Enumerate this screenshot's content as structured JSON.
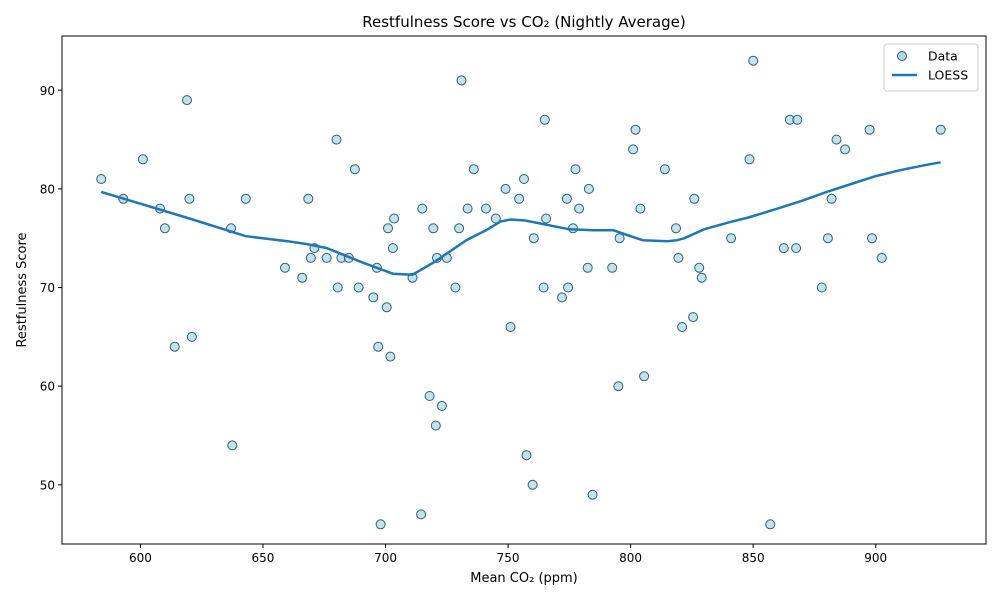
{
  "chart_data": {
    "type": "scatter",
    "title": "Restfulness Score vs CO₂ (Nightly Average)",
    "xlabel": "Mean CO₂ (ppm)",
    "ylabel": "Restfulness Score",
    "xlim": [
      568,
      945
    ],
    "ylim": [
      44,
      95.5
    ],
    "xticks": [
      600,
      650,
      700,
      750,
      800,
      850,
      900
    ],
    "yticks": [
      50,
      60,
      70,
      80,
      90
    ],
    "grid": false,
    "legend_position": "top-right",
    "legend": [
      "Data",
      "LOESS"
    ],
    "colors": {
      "point_fill": "#add8e6",
      "point_edge": "#2f5f74",
      "loess_line": "#1f77b4"
    },
    "series": [
      {
        "name": "Data",
        "kind": "scatter",
        "points": [
          [
            584,
            81
          ],
          [
            593,
            79
          ],
          [
            601,
            83
          ],
          [
            608,
            78
          ],
          [
            610,
            76
          ],
          [
            614,
            64
          ],
          [
            619,
            89
          ],
          [
            620,
            79
          ],
          [
            621,
            65
          ],
          [
            637,
            76
          ],
          [
            637.5,
            54
          ],
          [
            643,
            79
          ],
          [
            659,
            72
          ],
          [
            666,
            71
          ],
          [
            668.5,
            79
          ],
          [
            669.5,
            73
          ],
          [
            671,
            74
          ],
          [
            676,
            73
          ],
          [
            680,
            85
          ],
          [
            680.5,
            70
          ],
          [
            682,
            73
          ],
          [
            685,
            73
          ],
          [
            687.5,
            82
          ],
          [
            689,
            70
          ],
          [
            695,
            69
          ],
          [
            696.5,
            72
          ],
          [
            697,
            64
          ],
          [
            698,
            46
          ],
          [
            700.5,
            68
          ],
          [
            701,
            76
          ],
          [
            702,
            63
          ],
          [
            703,
            74
          ],
          [
            703.5,
            77
          ],
          [
            711,
            71
          ],
          [
            714.5,
            47
          ],
          [
            715,
            78
          ],
          [
            718,
            59
          ],
          [
            719.5,
            76
          ],
          [
            720.5,
            56
          ],
          [
            721,
            73
          ],
          [
            723,
            58
          ],
          [
            725,
            73
          ],
          [
            728.5,
            70
          ],
          [
            730,
            76
          ],
          [
            731,
            91
          ],
          [
            733.5,
            78
          ],
          [
            736,
            82
          ],
          [
            741,
            78
          ],
          [
            745,
            77
          ],
          [
            749,
            80
          ],
          [
            751,
            66
          ],
          [
            754.5,
            79
          ],
          [
            756.5,
            81
          ],
          [
            757.5,
            53
          ],
          [
            760,
            50
          ],
          [
            760.5,
            75
          ],
          [
            764.5,
            70
          ],
          [
            765,
            87
          ],
          [
            765.5,
            77
          ],
          [
            772,
            69
          ],
          [
            774,
            79
          ],
          [
            774.5,
            70
          ],
          [
            776.5,
            76
          ],
          [
            777.5,
            82
          ],
          [
            779,
            78
          ],
          [
            782.5,
            72
          ],
          [
            783,
            80
          ],
          [
            784.5,
            49
          ],
          [
            792.5,
            72
          ],
          [
            795,
            60
          ],
          [
            795.5,
            75
          ],
          [
            801,
            84
          ],
          [
            802,
            86
          ],
          [
            804,
            78
          ],
          [
            805.5,
            61
          ],
          [
            814,
            82
          ],
          [
            818.5,
            76
          ],
          [
            819.5,
            73
          ],
          [
            821,
            66
          ],
          [
            825.5,
            67
          ],
          [
            826,
            79
          ],
          [
            828,
            72
          ],
          [
            829,
            71
          ],
          [
            841,
            75
          ],
          [
            848.5,
            83
          ],
          [
            850,
            93
          ],
          [
            857,
            46
          ],
          [
            862.5,
            74
          ],
          [
            865,
            87
          ],
          [
            867.5,
            74
          ],
          [
            868,
            87
          ],
          [
            878,
            70
          ],
          [
            880.5,
            75
          ],
          [
            882,
            79
          ],
          [
            884,
            85
          ],
          [
            887.5,
            84
          ],
          [
            897.5,
            86
          ],
          [
            898.5,
            75
          ],
          [
            902.5,
            73
          ],
          [
            926.5,
            86
          ]
        ]
      },
      {
        "name": "LOESS",
        "kind": "line",
        "points": [
          [
            584,
            79.7
          ],
          [
            600,
            78.5
          ],
          [
            620,
            77
          ],
          [
            643,
            75.2
          ],
          [
            660,
            74.7
          ],
          [
            668,
            74.4
          ],
          [
            676,
            74
          ],
          [
            690,
            72.6
          ],
          [
            703,
            71.4
          ],
          [
            711,
            71.3
          ],
          [
            720,
            72.6
          ],
          [
            733,
            74.8
          ],
          [
            741,
            75.8
          ],
          [
            747,
            76.7
          ],
          [
            751,
            76.9
          ],
          [
            757,
            76.8
          ],
          [
            765,
            76.4
          ],
          [
            775,
            75.9
          ],
          [
            785,
            75.8
          ],
          [
            793,
            75.8
          ],
          [
            800,
            75.2
          ],
          [
            805,
            74.8
          ],
          [
            815,
            74.7
          ],
          [
            819,
            74.8
          ],
          [
            822,
            75
          ],
          [
            830,
            75.9
          ],
          [
            840,
            76.6
          ],
          [
            848,
            77.1
          ],
          [
            860,
            78
          ],
          [
            870,
            78.8
          ],
          [
            880,
            79.7
          ],
          [
            890,
            80.5
          ],
          [
            900,
            81.3
          ],
          [
            910,
            81.9
          ],
          [
            920,
            82.4
          ],
          [
            926.5,
            82.7
          ]
        ]
      }
    ]
  }
}
